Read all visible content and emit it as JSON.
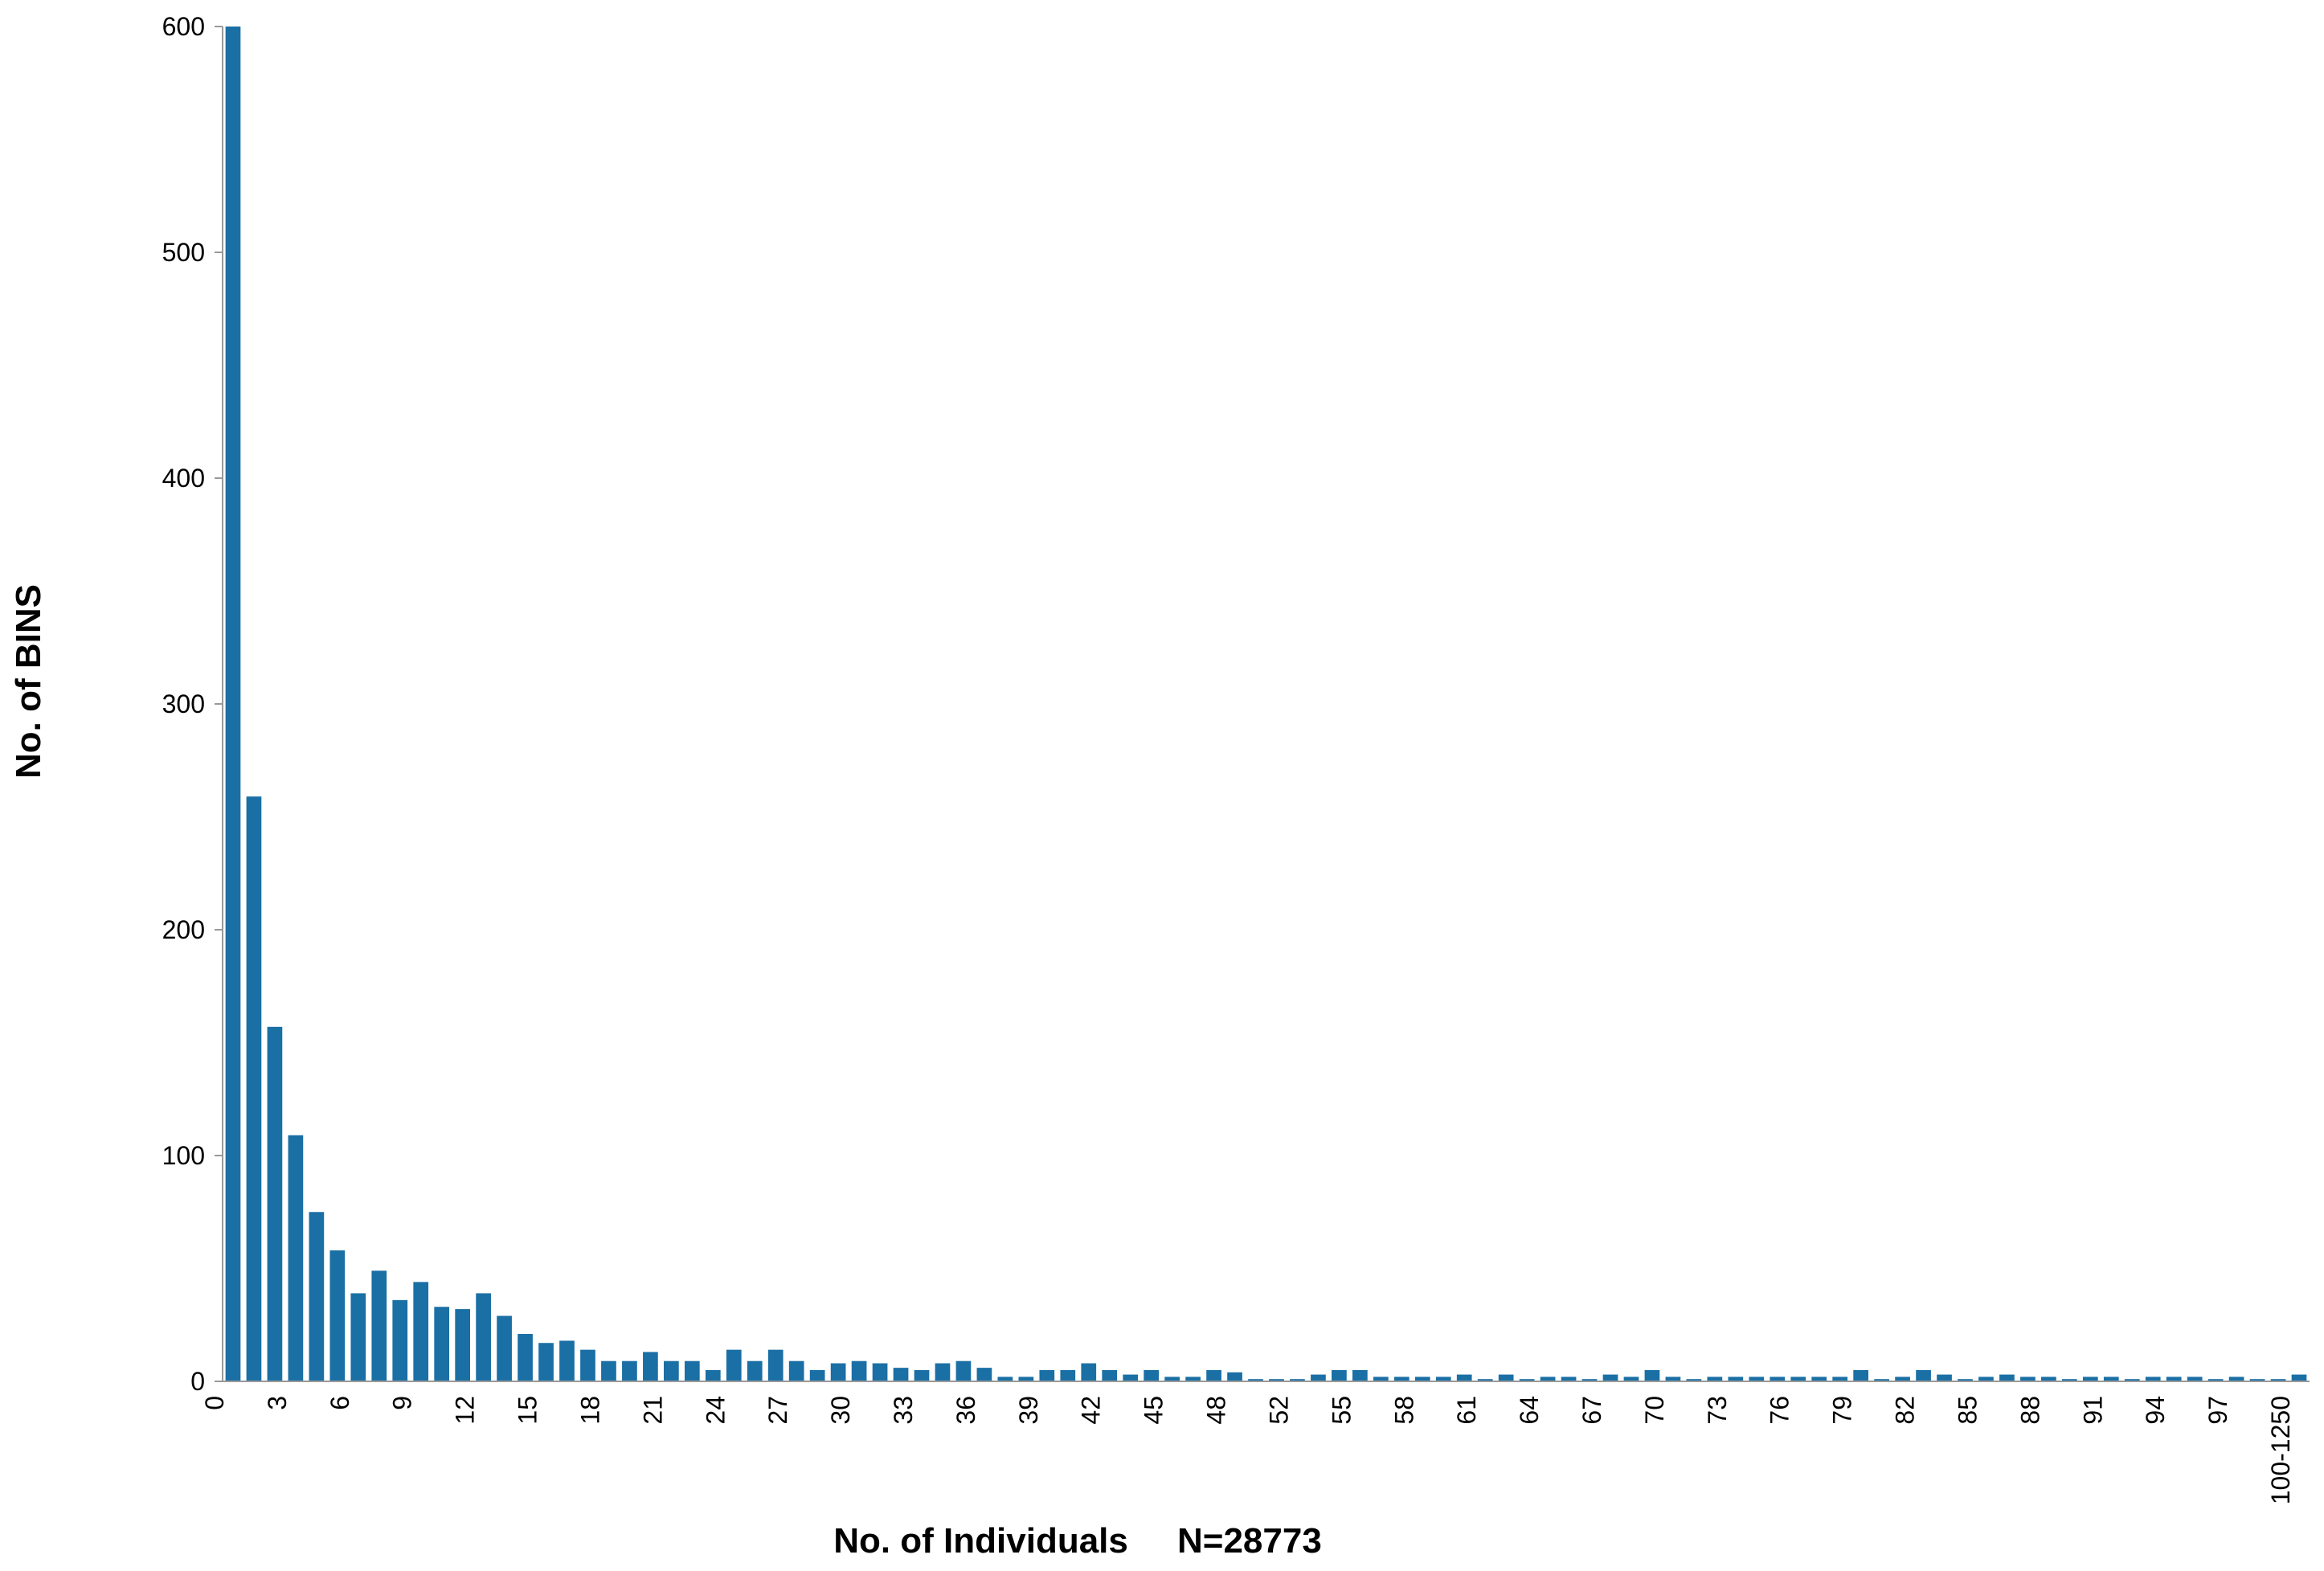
{
  "chart_data": {
    "type": "bar",
    "xlabel": "No. of Individuals     N=28773",
    "ylabel": "No. of BINS",
    "color": "#1a6fa5",
    "grid": false,
    "categories": [
      "0",
      null,
      null,
      "3",
      null,
      null,
      "6",
      null,
      null,
      "9",
      null,
      null,
      "12",
      null,
      null,
      "15",
      null,
      null,
      "18",
      null,
      null,
      "21",
      null,
      null,
      "24",
      null,
      null,
      "27",
      null,
      null,
      "30",
      null,
      null,
      "33",
      null,
      null,
      "36",
      null,
      null,
      "39",
      null,
      null,
      "42",
      null,
      null,
      "45",
      null,
      null,
      "48",
      null,
      null,
      "52",
      null,
      null,
      "55",
      null,
      null,
      "58",
      null,
      null,
      "61",
      null,
      null,
      "64",
      null,
      null,
      "67",
      null,
      null,
      "70",
      null,
      null,
      "73",
      null,
      null,
      "76",
      null,
      null,
      "79",
      null,
      null,
      "82",
      null,
      null,
      "85",
      null,
      null,
      "88",
      null,
      null,
      "91",
      null,
      null,
      "94",
      null,
      null,
      "97",
      null,
      null,
      "100-1250"
    ],
    "values": [
      600,
      259,
      157,
      109,
      75,
      58,
      39,
      49,
      36,
      44,
      33,
      32,
      39,
      29,
      21,
      17,
      18,
      14,
      9,
      9,
      13,
      9,
      9,
      5,
      14,
      9,
      14,
      9,
      5,
      8,
      9,
      8,
      6,
      5,
      8,
      9,
      6,
      2,
      2,
      5,
      5,
      8,
      5,
      3,
      5,
      2,
      2,
      5,
      4,
      1,
      1,
      1,
      3,
      5,
      5,
      2,
      2,
      2,
      2,
      3,
      1,
      3,
      1,
      2,
      2,
      1,
      3,
      2,
      5,
      2,
      1,
      2,
      2,
      2,
      2,
      2,
      2,
      2,
      5,
      1,
      2,
      5,
      3,
      1,
      2,
      3,
      2,
      2,
      1,
      2,
      2,
      1,
      2,
      2,
      2,
      1,
      2,
      1,
      1,
      3
    ],
    "ylim": [
      0,
      600
    ],
    "yticks": [
      0,
      100,
      200,
      300,
      400,
      500,
      600
    ]
  }
}
